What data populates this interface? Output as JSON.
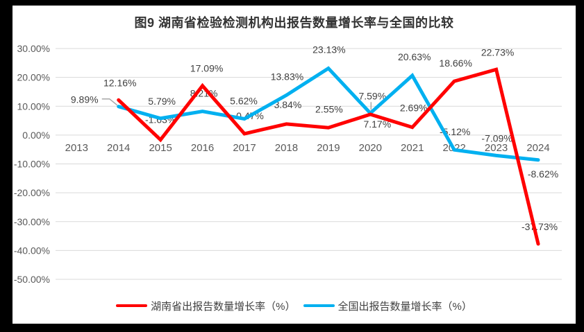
{
  "frame": {
    "border_color": "#000000",
    "background_color": "#ffffff"
  },
  "chart_data": {
    "type": "line",
    "title": "图9 湖南省检验检测机构出报告数量增长率与全国的比较",
    "categories": [
      "2013",
      "2014",
      "2015",
      "2016",
      "2017",
      "2018",
      "2019",
      "2020",
      "2021",
      "2022",
      "2023",
      "2024"
    ],
    "ylim": [
      -50,
      30
    ],
    "ytick_step": 10,
    "ytick_labels": [
      "30.00%",
      "20.00%",
      "10.00%",
      "0.00%",
      "-10.00%",
      "-20.00%",
      "-30.00%",
      "-40.00%",
      "-50.00%"
    ],
    "grid": true,
    "legend_position": "bottom",
    "series": [
      {
        "name": "湖南省出报告数量增长率（%）",
        "color": "#FF0000",
        "start_category": "2014",
        "values": [
          12.16,
          -1.63,
          17.09,
          0.47,
          3.84,
          2.55,
          7.17,
          2.69,
          18.66,
          22.73,
          -37.73
        ],
        "point_labels": [
          "12.16%",
          "-1.63%",
          "17.09%",
          "0.47%",
          "3.84%",
          "2.55%",
          "7.17%",
          "2.69%",
          "18.66%",
          "22.73%",
          "-37.73%"
        ]
      },
      {
        "name": "全国出报告数量增长率（%）",
        "color": "#00B0F0",
        "start_category": "2014",
        "values": [
          9.89,
          5.79,
          8.21,
          5.62,
          13.83,
          23.13,
          7.59,
          20.63,
          -5.12,
          -7.09,
          -8.62
        ],
        "point_labels": [
          "9.89%",
          "5.79%",
          "8.21%",
          "5.62%",
          "13.83%",
          "23.13%",
          "7.59%",
          "20.63%",
          "-5.12%",
          "-7.09%",
          "-8.62%"
        ]
      }
    ],
    "colors": {
      "gridline": "#D9D9D9",
      "axis_text": "#595959",
      "label_text": "#404040",
      "title_text": "#333333",
      "leader_line": "#A6A6A6"
    }
  }
}
